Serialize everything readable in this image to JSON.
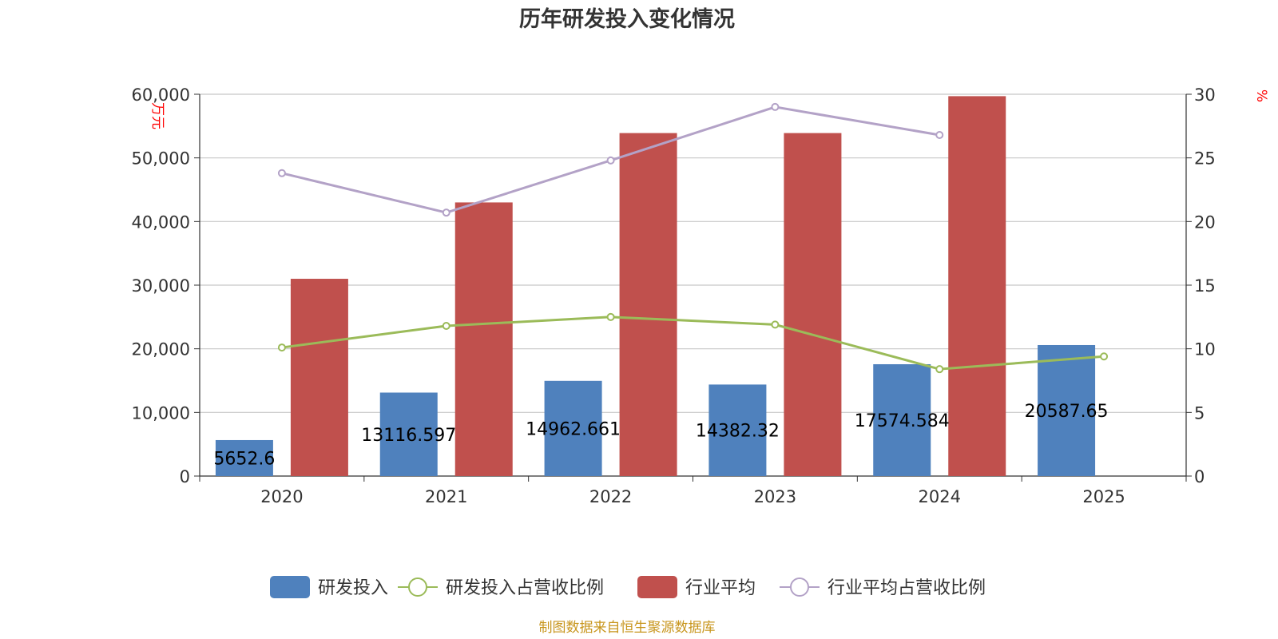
{
  "chart_data": {
    "type": "bar",
    "title": "历年研发投入变化情况",
    "categories": [
      "2020",
      "2021",
      "2022",
      "2023",
      "2024",
      "2025"
    ],
    "y_left": {
      "unit": "万元",
      "min": 0,
      "max": 60000,
      "ticks": [
        0,
        10000,
        20000,
        30000,
        40000,
        50000,
        60000
      ],
      "tick_labels": [
        "0",
        "10,000",
        "20,000",
        "30,000",
        "40,000",
        "50,000",
        "60,000"
      ]
    },
    "y_right": {
      "unit": "%",
      "min": 0,
      "max": 30,
      "ticks": [
        0,
        5,
        10,
        15,
        20,
        25,
        30
      ],
      "tick_labels": [
        "0",
        "5",
        "10",
        "15",
        "20",
        "25",
        "30"
      ]
    },
    "grid": true,
    "legend_position": "bottom",
    "series": [
      {
        "name": "研发投入",
        "type": "bar",
        "axis": "left",
        "color": "#4f81bd",
        "values": [
          5652.6,
          13116.597,
          14962.661,
          14382.32,
          17574.584,
          20587.65
        ],
        "labels": [
          "5652.6",
          "13116.597",
          "14962.661",
          "14382.32",
          "17574.584",
          "20587.65"
        ]
      },
      {
        "name": "研发投入占营收比例",
        "type": "line",
        "axis": "right",
        "color": "#9bbb59",
        "values": [
          10.1,
          11.8,
          12.5,
          11.9,
          8.4,
          9.4
        ]
      },
      {
        "name": "行业平均",
        "type": "bar",
        "axis": "left",
        "color": "#c0504d",
        "values": [
          31000,
          43000,
          53900,
          53900,
          59700,
          null
        ]
      },
      {
        "name": "行业平均占营收比例",
        "type": "line",
        "axis": "right",
        "color": "#b3a2c7",
        "values": [
          23.8,
          20.7,
          24.8,
          29.0,
          26.8,
          null
        ]
      }
    ],
    "source": "制图数据来自恒生聚源数据库"
  }
}
